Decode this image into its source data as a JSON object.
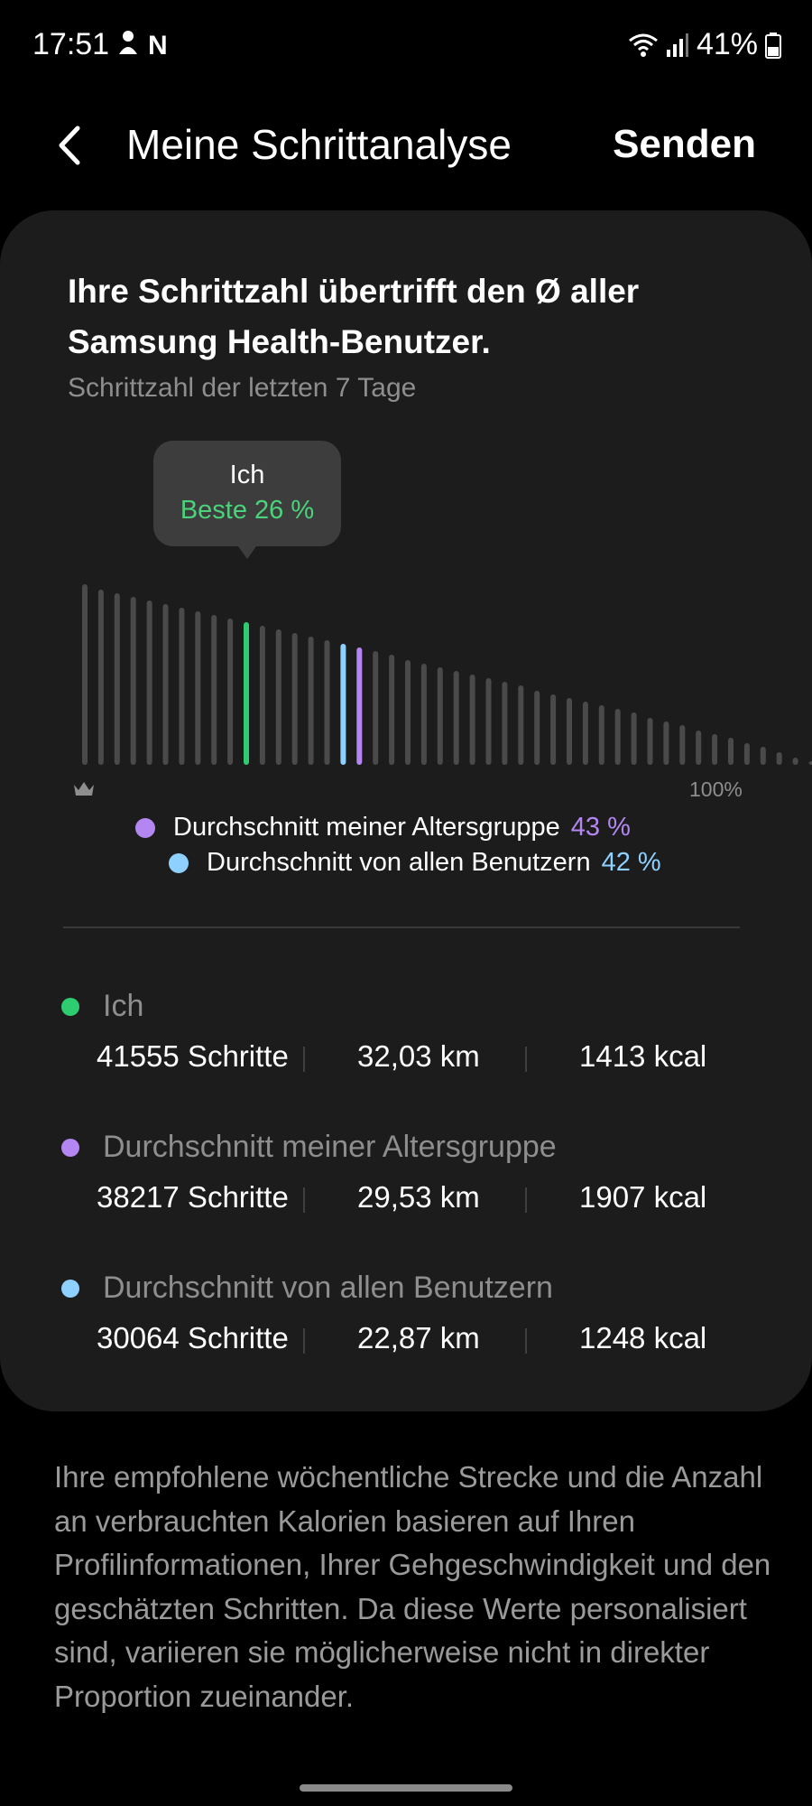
{
  "status_bar": {
    "time": "17:51",
    "battery": "41%"
  },
  "header": {
    "title": "Meine Schrittanalyse",
    "send_label": "Senden"
  },
  "summary": {
    "headline": "Ihre Schrittzahl übertrifft den Ø aller Samsung Health-Benutzer.",
    "subtitle": "Schrittzahl der letzten 7 Tage"
  },
  "chart_data": {
    "type": "bar",
    "description_axis_end": "100%",
    "tooltip": {
      "title": "Ich",
      "value": "Beste 26 %"
    },
    "markers": {
      "me_percent": 26,
      "age_group_percent": 43,
      "all_users_percent": 42
    },
    "values": [
      100,
      97,
      95,
      93,
      91,
      89,
      87,
      85,
      83,
      81,
      79,
      77,
      75,
      73,
      71,
      69,
      67,
      65,
      63,
      61,
      58,
      56,
      54,
      52,
      50,
      48,
      46,
      44,
      41,
      39,
      37,
      35,
      33,
      31,
      29,
      26,
      24,
      22,
      19,
      17,
      15,
      12,
      10,
      7,
      4,
      2
    ],
    "highlight": {
      "me": 10,
      "all_users": 16,
      "age_group": 17
    },
    "colors": {
      "default": "#4a4a4a",
      "me": "#2ecc71",
      "age_group": "#b486f2",
      "all_users": "#8ed0ff"
    }
  },
  "legend": [
    {
      "label": "Durchschnitt meiner Altersgruppe",
      "value": "43 %",
      "color": "#b486f2"
    },
    {
      "label": "Durchschnitt von allen Benutzern",
      "value": "42 %",
      "color": "#8ed0ff"
    }
  ],
  "stats": [
    {
      "label": "Ich",
      "color": "#2ecc71",
      "steps": "41555 Schritte",
      "distance": "32,03 km",
      "calories": "1413 kcal"
    },
    {
      "label": "Durchschnitt meiner Altersgruppe",
      "color": "#b486f2",
      "steps": "38217 Schritte",
      "distance": "29,53 km",
      "calories": "1907 kcal"
    },
    {
      "label": "Durchschnitt von allen Benutzern",
      "color": "#8ed0ff",
      "steps": "30064 Schritte",
      "distance": "22,87 km",
      "calories": "1248 kcal"
    }
  ],
  "disclaimer": "Ihre empfohlene wöchentliche Strecke und die Anzahl an verbrauchten Kalorien basieren auf Ihren Profilinformationen, Ihrer Gehgeschwindigkeit und den geschätzten Schritten. Da diese Werte personalisiert sind, variieren sie möglicherweise nicht in direkter Proportion zueinander."
}
